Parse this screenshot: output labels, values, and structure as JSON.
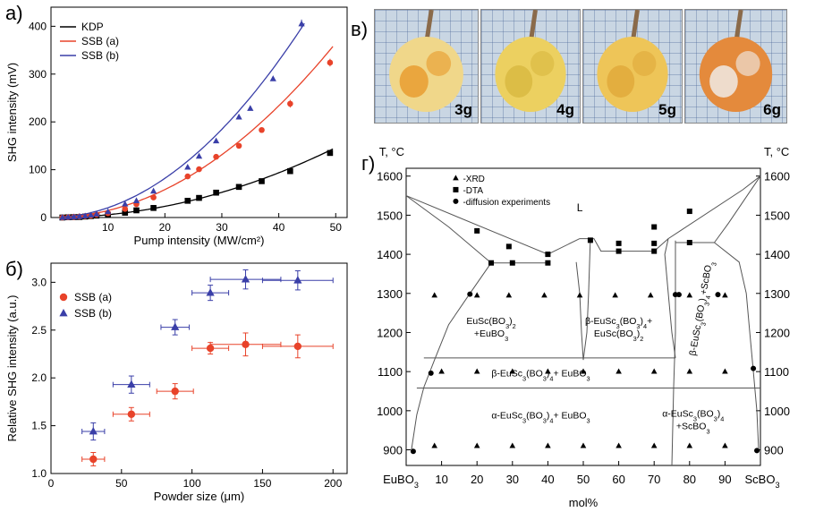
{
  "panel_labels": {
    "a": "а)",
    "b": "б)",
    "c": "в)",
    "d": "г)"
  },
  "colors": {
    "kdp": "#000000",
    "ssb_a": "#e8432a",
    "ssb_b": "#3a3fa8"
  },
  "photos": [
    {
      "label": "3g",
      "body": "#f0d78a",
      "accent": "#e89a2a"
    },
    {
      "label": "4g",
      "body": "#ecd060",
      "accent": "#d8b840"
    },
    {
      "label": "5g",
      "body": "#eec558",
      "accent": "#e0a83a"
    },
    {
      "label": "6g",
      "body": "#e48a3c",
      "accent": "#f0f0f0"
    }
  ],
  "chart_data": [
    {
      "type": "scatter",
      "id": "shg-vs-pump",
      "xlabel": "Pump intensity (MW/cm²)",
      "ylabel": "SHG intensity (mV)",
      "xlim": [
        0,
        52
      ],
      "ylim": [
        0,
        440
      ],
      "xticks": [
        "10",
        "20",
        "30",
        "40",
        "50"
      ],
      "yticks": [
        "0",
        "100",
        "200",
        "300",
        "400"
      ],
      "legend": "top-left",
      "series": [
        {
          "name": "KDP",
          "marker": "square",
          "fit_k": 0.0585,
          "x": [
            2,
            3,
            4,
            5,
            6,
            7,
            8,
            10,
            13,
            15,
            18,
            24,
            26,
            29,
            33,
            37,
            42,
            49
          ],
          "y": [
            0,
            0.5,
            0.8,
            1,
            2,
            3,
            4,
            6,
            10,
            15,
            20,
            35,
            41,
            52,
            64,
            76,
            97,
            135
          ]
        },
        {
          "name": "SSB (a)",
          "marker": "circle",
          "fit_k": 0.146,
          "x": [
            2,
            3,
            4,
            5,
            6,
            7,
            8,
            10,
            13,
            15,
            18,
            24,
            26,
            29,
            33,
            37,
            42,
            49
          ],
          "y": [
            0,
            0.5,
            1,
            2,
            3,
            4,
            6,
            9,
            18,
            28,
            42,
            86,
            101,
            127,
            150,
            183,
            238,
            324
          ],
          "yerr": [
            0,
            0,
            0,
            0,
            0,
            0,
            0,
            0,
            0,
            0,
            0,
            0,
            0,
            0,
            0,
            0,
            8,
            8
          ]
        },
        {
          "name": "SSB (b)",
          "marker": "triangle",
          "fit_k": 0.205,
          "x": [
            2,
            3,
            4,
            5,
            6,
            7,
            8,
            10,
            13,
            15,
            18,
            24,
            26,
            29,
            33,
            35,
            39,
            44
          ],
          "y": [
            0,
            0.5,
            1,
            2,
            3,
            5,
            7,
            12,
            28,
            35,
            55,
            105,
            128,
            160,
            210,
            228,
            290,
            405
          ],
          "yerr": [
            0,
            0,
            0,
            0,
            0,
            0,
            0,
            0,
            0,
            0,
            0,
            0,
            0,
            0,
            0,
            0,
            0,
            9
          ]
        }
      ]
    },
    {
      "type": "scatter",
      "id": "shg-vs-size",
      "xlabel": "Powder size (μm)",
      "ylabel": "Relative SHG intensity (a.u.)",
      "xlim": [
        0,
        210
      ],
      "ylim": [
        1.0,
        3.2
      ],
      "xticks": [
        "0",
        "50",
        "100",
        "150",
        "200"
      ],
      "yticks": [
        "1.0",
        "1.5",
        "2.0",
        "2.5",
        "3.0"
      ],
      "legend": "top-left",
      "series": [
        {
          "name": "SSB (a)",
          "marker": "circle",
          "x": [
            30,
            57,
            88,
            113,
            138,
            175
          ],
          "y": [
            1.15,
            1.62,
            1.86,
            2.31,
            2.35,
            2.33
          ],
          "xerr": [
            8,
            13,
            13,
            13,
            25,
            25
          ],
          "yerr": [
            0.07,
            0.07,
            0.08,
            0.06,
            0.12,
            0.12
          ]
        },
        {
          "name": "SSB (b)",
          "marker": "triangle",
          "x": [
            30,
            57,
            88,
            113,
            138,
            175
          ],
          "y": [
            1.44,
            1.93,
            2.53,
            2.89,
            3.03,
            3.02
          ],
          "xerr": [
            8,
            13,
            10,
            13,
            25,
            25
          ],
          "yerr": [
            0.09,
            0.09,
            0.08,
            0.08,
            0.1,
            0.1
          ]
        }
      ]
    },
    {
      "type": "scatter",
      "id": "phase-diagram",
      "xlabel": "mol%",
      "ylabel_left": "T, °C",
      "ylabel_right": "T, °C",
      "x_end_left": "EuBO3",
      "x_end_right": "ScBO3",
      "xlim": [
        0,
        100
      ],
      "ylim": [
        860,
        1620
      ],
      "xticks": [
        "10",
        "20",
        "30",
        "40",
        "50",
        "60",
        "70",
        "80",
        "90"
      ],
      "yticks": [
        "900",
        "1000",
        "1100",
        "1200",
        "1300",
        "1400",
        "1500",
        "1600"
      ],
      "legend_items": [
        "-XRD",
        "-DTA",
        "-diffusion experiments"
      ],
      "liquid_label": "L",
      "xrd_points": [
        [
          8,
          1295
        ],
        [
          20,
          1295
        ],
        [
          29,
          1295
        ],
        [
          39,
          1295
        ],
        [
          49,
          1295
        ],
        [
          59,
          1295
        ],
        [
          69,
          1295
        ],
        [
          80,
          1295
        ],
        [
          90,
          1295
        ],
        [
          10,
          1100
        ],
        [
          20,
          1100
        ],
        [
          30,
          1100
        ],
        [
          40,
          1100
        ],
        [
          50,
          1100
        ],
        [
          60,
          1100
        ],
        [
          70,
          1100
        ],
        [
          80,
          1100
        ],
        [
          90,
          1100
        ],
        [
          8,
          910
        ],
        [
          20,
          910
        ],
        [
          30,
          910
        ],
        [
          40,
          910
        ],
        [
          50,
          910
        ],
        [
          60,
          910
        ],
        [
          70,
          910
        ],
        [
          80,
          910
        ],
        [
          90,
          910
        ]
      ],
      "dta_points": [
        [
          20,
          1460
        ],
        [
          29,
          1420
        ],
        [
          40,
          1400
        ],
        [
          24,
          1378
        ],
        [
          30,
          1378
        ],
        [
          40,
          1378
        ],
        [
          52,
          1436
        ],
        [
          60,
          1428
        ],
        [
          70,
          1470
        ],
        [
          60,
          1408
        ],
        [
          70,
          1408
        ],
        [
          70,
          1428
        ],
        [
          80,
          1510
        ],
        [
          80,
          1430
        ]
      ],
      "diffusion_points": [
        [
          2,
          896
        ],
        [
          7,
          1096
        ],
        [
          18,
          1298
        ],
        [
          76,
          1297
        ],
        [
          77,
          1297
        ],
        [
          88,
          1297
        ],
        [
          98,
          1108
        ],
        [
          99,
          898
        ]
      ],
      "regions": [
        {
          "lines": [
            "EuSc(BO3)2",
            "+EuBO3"
          ],
          "x": 24,
          "y": 1222
        },
        {
          "lines": [
            "β-EuSc3(BO3)4+",
            "EuSc(BO3)2"
          ],
          "x": 60,
          "y": 1222
        },
        {
          "lines": [
            "β-EuSc3(BO3)4+ EuBO3"
          ],
          "x": 38,
          "y": 1088
        },
        {
          "lines": [
            "α-EuSc3(BO3)4+ EuBO3"
          ],
          "x": 38,
          "y": 980
        },
        {
          "lines": [
            "α-EuSc3(BO3)4",
            "+ScBO3"
          ],
          "x": 81,
          "y": 985
        },
        {
          "lines": [
            "β-EuSc3(BO3)4+ScBO3"
          ],
          "x": 84,
          "y": 1260,
          "rotate": true
        }
      ],
      "boundaries": [
        [
          [
            0,
            1550
          ],
          [
            12,
            1470
          ],
          [
            24,
            1378
          ]
        ],
        [
          [
            24,
            1378
          ],
          [
            40,
            1378
          ]
        ],
        [
          [
            0,
            1550
          ],
          [
            40,
            1400
          ],
          [
            49,
            1440
          ]
        ],
        [
          [
            49,
            1440
          ],
          [
            53,
            1440
          ],
          [
            55,
            1408
          ],
          [
            70,
            1408
          ],
          [
            74,
            1440
          ],
          [
            95,
            1565
          ],
          [
            100,
            1600
          ]
        ],
        [
          [
            24,
            1378
          ],
          [
            18,
            1300
          ],
          [
            12,
            1220
          ],
          [
            8,
            1130
          ],
          [
            5,
            1060
          ],
          [
            3,
            990
          ],
          [
            1.5,
            900
          ]
        ],
        [
          [
            48,
            1380
          ],
          [
            49,
            1300
          ],
          [
            49.5,
            1200
          ],
          [
            50,
            1130
          ]
        ],
        [
          [
            52,
            1440
          ],
          [
            51.5,
            1300
          ],
          [
            51,
            1200
          ],
          [
            50,
            1130
          ]
        ],
        [
          [
            5,
            1135
          ],
          [
            76,
            1135
          ]
        ],
        [
          [
            3,
            1058
          ],
          [
            100,
            1058
          ]
        ],
        [
          [
            76,
            1430
          ],
          [
            87,
            1430
          ]
        ],
        [
          [
            76,
            1435
          ],
          [
            76,
            1300
          ],
          [
            76,
            1200
          ],
          [
            75.5,
            1060
          ],
          [
            75,
            860
          ]
        ],
        [
          [
            87,
            1430
          ],
          [
            94,
            1380
          ],
          [
            96,
            1300
          ],
          [
            97,
            1200
          ],
          [
            98,
            1100
          ],
          [
            99,
            1000
          ],
          [
            99.5,
            900
          ]
        ],
        [
          [
            87,
            1430
          ],
          [
            91,
            1480
          ],
          [
            100,
            1600
          ]
        ],
        [
          [
            74,
            1440
          ],
          [
            73,
            1400
          ],
          [
            74,
            1300
          ],
          [
            75,
            1200
          ],
          [
            76,
            1135
          ]
        ]
      ]
    }
  ]
}
